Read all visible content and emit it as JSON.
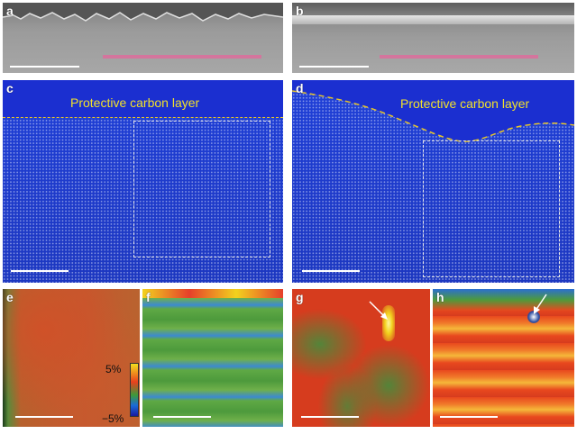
{
  "panels": {
    "a": {
      "label": "a"
    },
    "b": {
      "label": "b"
    },
    "c": {
      "label": "c",
      "text": "Protective carbon layer"
    },
    "d": {
      "label": "d",
      "text": "Protective carbon layer"
    },
    "e": {
      "label": "e"
    },
    "f": {
      "label": "f"
    },
    "g": {
      "label": "g"
    },
    "h": {
      "label": "h"
    }
  },
  "colorbar": {
    "max": "5%",
    "min": "−5%"
  },
  "colors": {
    "lattice_blue": "#1f3fd8",
    "carbon_text": "#f2e12a",
    "pink_bar": "#d4759d",
    "strain_red": "#e0421f",
    "strain_green": "#3f9a3a"
  },
  "icons": [
    "arrow-icon",
    "arrow-icon"
  ]
}
